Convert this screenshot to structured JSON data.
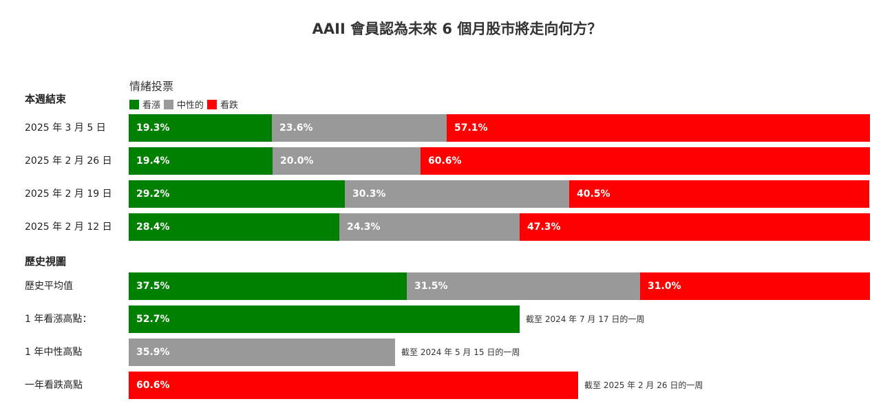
{
  "chart_data": {
    "type": "bar",
    "title": "AAII 會員認為未來 6 個月股市將走向何方？",
    "legend_title": "情緒投票",
    "legend": [
      {
        "name": "看漲",
        "color": "#008000"
      },
      {
        "name": "中性的",
        "color": "#999999"
      },
      {
        "name": "看跌",
        "color": "#ff0000"
      }
    ],
    "sections": [
      {
        "heading": "本週結束",
        "rows": [
          {
            "label": "2025 年 3 月 5 日",
            "values": [
              19.3,
              23.6,
              57.1
            ],
            "value_labels": [
              "19.3%",
              "23.6%",
              "57.1%"
            ]
          },
          {
            "label": "2025 年 2 月 26 日",
            "values": [
              19.4,
              20.0,
              60.6
            ],
            "value_labels": [
              "19.4%",
              "20.0%",
              "60.6%"
            ]
          },
          {
            "label": "2025 年 2 月 19 日",
            "values": [
              29.2,
              30.3,
              40.5
            ],
            "value_labels": [
              "29.2%",
              "30.3%",
              "40.5%"
            ]
          },
          {
            "label": "2025 年 2 月 12 日",
            "values": [
              28.4,
              24.3,
              47.3
            ],
            "value_labels": [
              "28.4%",
              "24.3%",
              "47.3%"
            ]
          }
        ]
      },
      {
        "heading": "歷史視圖",
        "rows": [
          {
            "label": "歷史平均值",
            "values": [
              37.5,
              31.5,
              31.0
            ],
            "value_labels": [
              "37.5%",
              "31.5%",
              "31.0%"
            ]
          },
          {
            "label": "1 年看漲高點：",
            "series": "看漲",
            "value": 52.7,
            "value_label": "52.7%",
            "note": "截至 2024 年 7 月 17 日的一周"
          },
          {
            "label": "1 年中性高點",
            "series": "中性的",
            "value": 35.9,
            "value_label": "35.9%",
            "note": "截至 2024 年 5 月 15 日的一周"
          },
          {
            "label": "一年看跌高點",
            "series": "看跌",
            "value": 60.6,
            "value_label": "60.6%",
            "note": "截至 2025 年 2 月 26 日的一周"
          }
        ]
      }
    ],
    "xlim": [
      0,
      100
    ]
  }
}
